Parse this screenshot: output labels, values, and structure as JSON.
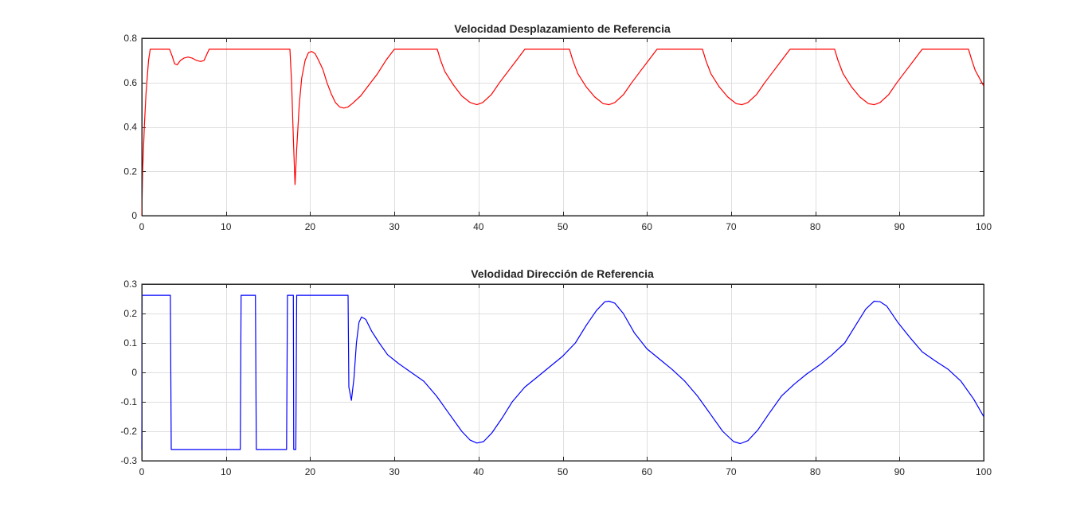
{
  "chart_data": [
    {
      "type": "line",
      "title": "Velocidad Desplazamiento de Referencia",
      "xlabel": "",
      "ylabel": "",
      "xlim": [
        0,
        100
      ],
      "ylim": [
        0,
        0.8
      ],
      "xticks": [
        0,
        10,
        20,
        30,
        40,
        50,
        60,
        70,
        80,
        90,
        100
      ],
      "yticks": [
        0,
        0.2,
        0.4,
        0.6,
        0.8
      ],
      "xtick_labels": [
        "0",
        "10",
        "20",
        "30",
        "40",
        "50",
        "60",
        "70",
        "80",
        "90",
        "100"
      ],
      "ytick_labels": [
        "0",
        "0.2",
        "0.4",
        "0.6",
        "0.8"
      ],
      "grid": true,
      "series": [
        {
          "color": "#ff0000",
          "x": [
            0,
            0.1,
            0.3,
            0.5,
            0.8,
            1.0,
            2.0,
            3.0,
            3.3,
            3.6,
            3.9,
            4.2,
            4.6,
            5.0,
            5.5,
            6.0,
            6.5,
            7.0,
            7.4,
            7.7,
            8.0,
            10,
            15,
            17.6,
            17.8,
            18.0,
            18.2,
            18.4,
            18.7,
            19.0,
            19.4,
            19.8,
            20.2,
            20.6,
            21.0,
            21.5,
            22.0,
            22.5,
            23.0,
            23.5,
            24.0,
            24.5,
            25.0,
            26.0,
            27.0,
            28.0,
            29.0,
            30.0,
            32.0,
            35.1,
            35.5,
            36.0,
            37.0,
            38.0,
            39.0,
            39.8,
            40.5,
            41.5,
            42.5,
            43.5,
            44.5,
            45.5,
            47.0,
            50.8,
            51.2,
            51.8,
            52.8,
            53.8,
            54.8,
            55.5,
            56.2,
            57.2,
            58.2,
            59.2,
            60.2,
            61.2,
            63.0,
            66.6,
            67.0,
            67.6,
            68.6,
            69.6,
            70.6,
            71.3,
            72.0,
            73.0,
            74.0,
            75.0,
            76.0,
            77.0,
            79.0,
            82.3,
            82.7,
            83.3,
            84.3,
            85.3,
            86.3,
            87.0,
            87.7,
            88.7,
            89.7,
            90.7,
            91.7,
            92.7,
            95.0,
            98.2,
            98.6,
            99.0,
            99.5,
            100.0
          ],
          "y": [
            0.0,
            0.2,
            0.4,
            0.55,
            0.7,
            0.75,
            0.75,
            0.75,
            0.75,
            0.72,
            0.685,
            0.68,
            0.7,
            0.71,
            0.715,
            0.71,
            0.7,
            0.695,
            0.7,
            0.725,
            0.75,
            0.75,
            0.75,
            0.75,
            0.6,
            0.35,
            0.14,
            0.3,
            0.5,
            0.62,
            0.7,
            0.735,
            0.74,
            0.73,
            0.7,
            0.66,
            0.6,
            0.55,
            0.51,
            0.49,
            0.485,
            0.49,
            0.505,
            0.54,
            0.59,
            0.64,
            0.7,
            0.75,
            0.75,
            0.75,
            0.7,
            0.65,
            0.59,
            0.54,
            0.51,
            0.5,
            0.51,
            0.545,
            0.6,
            0.65,
            0.7,
            0.75,
            0.75,
            0.75,
            0.7,
            0.64,
            0.58,
            0.535,
            0.505,
            0.5,
            0.51,
            0.545,
            0.6,
            0.65,
            0.7,
            0.75,
            0.75,
            0.75,
            0.7,
            0.64,
            0.58,
            0.535,
            0.505,
            0.5,
            0.51,
            0.545,
            0.6,
            0.65,
            0.7,
            0.75,
            0.75,
            0.75,
            0.7,
            0.64,
            0.58,
            0.535,
            0.505,
            0.5,
            0.51,
            0.545,
            0.6,
            0.65,
            0.7,
            0.75,
            0.75,
            0.75,
            0.7,
            0.655,
            0.62,
            0.585
          ]
        }
      ]
    },
    {
      "type": "line",
      "title": "Velodidad Dirección de Referencia",
      "xlabel": "",
      "ylabel": "",
      "xlim": [
        0,
        100
      ],
      "ylim": [
        -0.3,
        0.3
      ],
      "xticks": [
        0,
        10,
        20,
        30,
        40,
        50,
        60,
        70,
        80,
        90,
        100
      ],
      "yticks": [
        -0.3,
        -0.2,
        -0.1,
        0,
        0.1,
        0.2,
        0.3
      ],
      "xtick_labels": [
        "0",
        "10",
        "20",
        "30",
        "40",
        "50",
        "60",
        "70",
        "80",
        "90",
        "100"
      ],
      "ytick_labels": [
        "-0.3",
        "-0.2",
        "-0.1",
        "0",
        "0.1",
        "0.2",
        "0.3"
      ],
      "grid": true,
      "series": [
        {
          "color": "#0000ff",
          "x": [
            0,
            0.05,
            0.2,
            3.4,
            3.5,
            11.7,
            11.8,
            13.5,
            13.6,
            17.2,
            17.3,
            18.0,
            18.05,
            18.3,
            18.4,
            24.5,
            24.6,
            24.9,
            25.2,
            25.5,
            25.8,
            26.1,
            26.6,
            27.3,
            28.2,
            29.2,
            30.5,
            32.0,
            33.5,
            35.0,
            36.5,
            38.0,
            39.0,
            39.8,
            40.6,
            41.6,
            42.8,
            44.0,
            45.5,
            47.0,
            48.5,
            50.0,
            51.5,
            52.8,
            54.0,
            55.0,
            55.5,
            56.2,
            57.2,
            58.5,
            60.0,
            61.5,
            63.0,
            64.5,
            66.0,
            67.5,
            69.0,
            70.3,
            71.1,
            72.0,
            73.2,
            74.5,
            76.0,
            77.5,
            79.0,
            80.5,
            82.0,
            83.5,
            84.8,
            86.0,
            87.0,
            87.7,
            88.5,
            89.8,
            91.2,
            92.7,
            94.2,
            95.8,
            97.3,
            98.8,
            100.0
          ],
          "y": [
            -0.262,
            0.262,
            0.262,
            0.262,
            -0.262,
            -0.262,
            0.262,
            0.262,
            -0.262,
            -0.262,
            0.262,
            0.262,
            -0.262,
            -0.262,
            0.262,
            0.262,
            -0.05,
            -0.095,
            -0.02,
            0.1,
            0.17,
            0.188,
            0.18,
            0.14,
            0.1,
            0.06,
            0.03,
            0.0,
            -0.03,
            -0.08,
            -0.14,
            -0.2,
            -0.23,
            -0.24,
            -0.235,
            -0.205,
            -0.155,
            -0.1,
            -0.05,
            -0.015,
            0.02,
            0.055,
            0.1,
            0.16,
            0.21,
            0.24,
            0.242,
            0.235,
            0.2,
            0.135,
            0.08,
            0.045,
            0.01,
            -0.03,
            -0.08,
            -0.14,
            -0.2,
            -0.235,
            -0.242,
            -0.232,
            -0.195,
            -0.14,
            -0.08,
            -0.04,
            -0.005,
            0.025,
            0.06,
            0.1,
            0.16,
            0.215,
            0.242,
            0.24,
            0.225,
            0.17,
            0.12,
            0.07,
            0.04,
            0.01,
            -0.03,
            -0.09,
            -0.15
          ]
        }
      ]
    }
  ]
}
